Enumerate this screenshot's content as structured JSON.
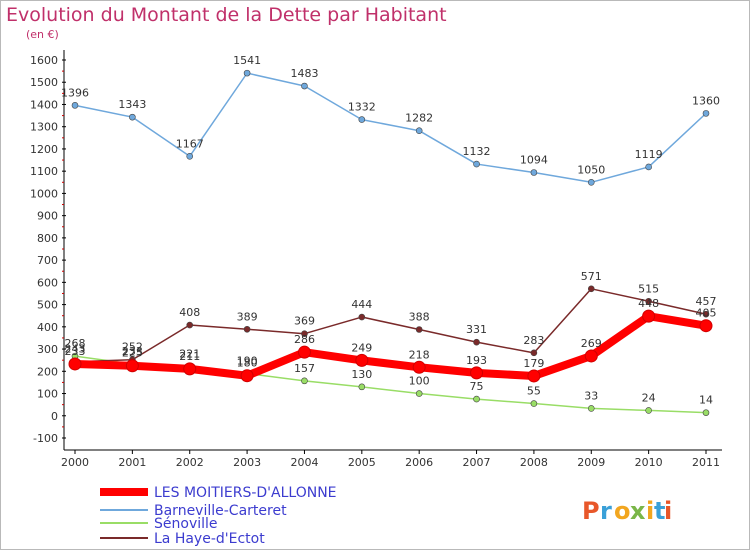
{
  "header": {
    "title": "Evolution du Montant de la Dette par Habitant",
    "subtitle": "(en €)"
  },
  "logo": {
    "text": "Proxiti",
    "colors": [
      "#e8572a",
      "#3aa0d8",
      "#f2a61f",
      "#7ab648"
    ]
  },
  "chart_data": {
    "type": "line",
    "x": [
      "2000",
      "2001",
      "2002",
      "2003",
      "2004",
      "2005",
      "2006",
      "2007",
      "2008",
      "2009",
      "2010",
      "2011"
    ],
    "ylim": [
      -100,
      1600
    ],
    "yticks": [
      -100,
      0,
      100,
      200,
      300,
      400,
      500,
      600,
      700,
      800,
      900,
      1000,
      1100,
      1200,
      1300,
      1400,
      1500,
      1600
    ],
    "grid": false,
    "legend_position": "bottom-left",
    "series": [
      {
        "name": "LES MOITIERS-D'ALLONNE",
        "color": "#ff0000",
        "values": [
          233,
          225,
          211,
          180,
          286,
          249,
          218,
          193,
          179,
          269,
          448,
          405
        ],
        "labels": [
          "233",
          "225",
          "211",
          "180",
          "286",
          "249",
          "218",
          "193",
          "179",
          "269",
          "448",
          "405"
        ]
      },
      {
        "name": "Barneville-Carteret",
        "color": "#6fa8dc",
        "values": [
          1396,
          1343,
          1167,
          1541,
          1483,
          1332,
          1282,
          1132,
          1094,
          1050,
          1119,
          1360
        ],
        "labels": [
          "1396",
          "1343",
          "1167",
          "1541",
          "1483",
          "1332",
          "1282",
          "1132",
          "1094",
          "1050",
          "1119",
          "1360"
        ]
      },
      {
        "name": "Sénoville",
        "color": "#99dd66",
        "values": [
          268,
          233,
          221,
          190,
          157,
          130,
          100,
          75,
          55,
          33,
          24,
          14
        ],
        "labels": [
          "268",
          "233",
          "221",
          "190",
          "157",
          "130",
          "100",
          "75",
          "55",
          "33",
          "24",
          "14"
        ]
      },
      {
        "name": "La Haye-d'Ectot",
        "color": "#7a2a2a",
        "values": [
          243,
          252,
          408,
          389,
          369,
          444,
          388,
          331,
          283,
          571,
          515,
          457
        ],
        "labels": [
          "243",
          "252",
          "408",
          "389",
          "369",
          "444",
          "388",
          "331",
          "283",
          "571",
          "515",
          "457"
        ]
      }
    ]
  }
}
